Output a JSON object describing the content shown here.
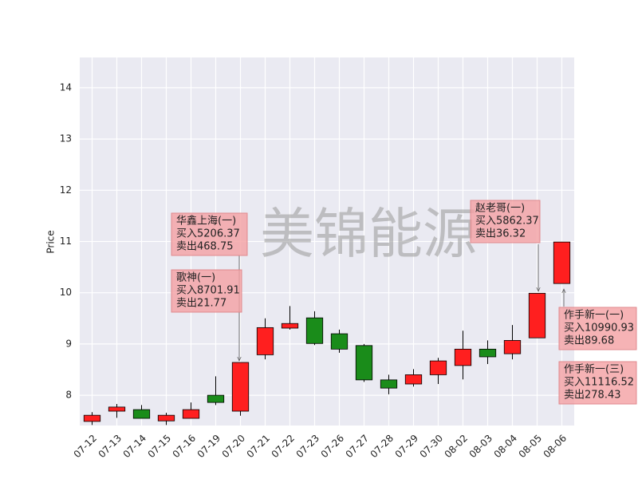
{
  "chart_data": {
    "type": "candlestick",
    "ylabel": "Price",
    "watermark": "美锦能源",
    "categories": [
      "07-12",
      "07-13",
      "07-14",
      "07-15",
      "07-16",
      "07-19",
      "07-20",
      "07-21",
      "07-22",
      "07-23",
      "07-26",
      "07-27",
      "07-28",
      "07-29",
      "07-30",
      "08-02",
      "08-03",
      "08-04",
      "08-05",
      "08-06"
    ],
    "open": [
      7.49,
      7.69,
      7.72,
      7.5,
      7.55,
      8.0,
      7.69,
      8.79,
      9.31,
      9.51,
      9.2,
      8.97,
      8.3,
      8.22,
      8.4,
      8.58,
      8.9,
      8.81,
      9.12,
      10.18
    ],
    "close": [
      7.61,
      7.77,
      7.55,
      7.61,
      7.72,
      7.86,
      8.64,
      9.32,
      9.4,
      9.01,
      8.9,
      8.3,
      8.14,
      8.4,
      8.67,
      8.9,
      8.75,
      9.07,
      9.99,
      10.99
    ],
    "high": [
      7.67,
      7.83,
      7.81,
      7.66,
      7.86,
      8.37,
      8.64,
      9.5,
      9.74,
      9.64,
      9.28,
      9.0,
      8.4,
      8.51,
      8.73,
      9.26,
      9.07,
      9.37,
      9.99,
      10.99
    ],
    "low": [
      7.42,
      7.56,
      7.55,
      7.42,
      7.55,
      7.81,
      7.6,
      8.7,
      9.28,
      8.98,
      8.83,
      8.26,
      8.02,
      8.17,
      8.22,
      8.31,
      8.61,
      8.7,
      9.12,
      10.18
    ],
    "up_color": "#ff1f1f",
    "down_color": "#1a8c1a",
    "ylim": [
      7.41,
      14.59
    ],
    "yticks": [
      8,
      9,
      10,
      11,
      12,
      13,
      14
    ],
    "grid": true,
    "background": "#eaeaf2",
    "annotations": [
      {
        "lines": [
          "华鑫上海(一)",
          "买入5206.37",
          "卖出468.75"
        ]
      },
      {
        "lines": [
          "歌神(一)",
          "买入8701.91",
          "卖出21.77"
        ]
      },
      {
        "lines": [
          "赵老哥(一)",
          "买入5862.37",
          "卖出36.32"
        ]
      },
      {
        "lines": [
          "作手新一(一)",
          "买入10990.93",
          "卖出89.68"
        ]
      },
      {
        "lines": [
          "作手新一(三)",
          "买入11116.52",
          "卖出278.43"
        ]
      }
    ]
  }
}
